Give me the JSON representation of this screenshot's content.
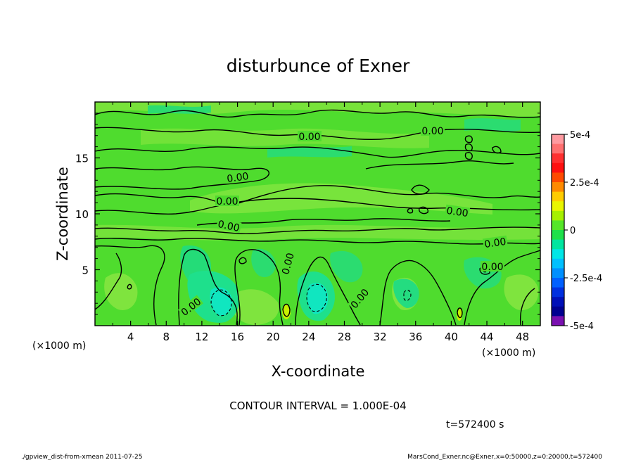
{
  "chart_data": {
    "type": "heatmap",
    "title": "disturbunce of Exner",
    "xlabel": "X-coordinate",
    "ylabel": "Z-coordinate",
    "x_units_left": "(×1000 m)",
    "x_units_right": "(×1000 m)",
    "xlim": [
      0,
      50
    ],
    "ylim": [
      0,
      20
    ],
    "x_ticks": [
      "4",
      "8",
      "12",
      "16",
      "20",
      "24",
      "28",
      "32",
      "36",
      "40",
      "44",
      "48"
    ],
    "y_ticks": [
      "5",
      "10",
      "15"
    ],
    "colorbar": {
      "labels": [
        "5e-4",
        "2.5e-4",
        "0",
        "-2.5e-4",
        "-5e-4"
      ],
      "range": [
        -0.0005,
        0.0005
      ],
      "colors": [
        "#ff9aa0",
        "#ff7070",
        "#ff3030",
        "#ff1010",
        "#ff4a00",
        "#ff8a00",
        "#ffcc00",
        "#e9f500",
        "#a6f000",
        "#55e628",
        "#1ee04a",
        "#00e6a0",
        "#00e6e6",
        "#00c0ff",
        "#0090ff",
        "#0060ff",
        "#0030e0",
        "#0010b8",
        "#000090",
        "#7a10b0"
      ]
    },
    "contour_labels": [
      "0.00",
      "0.00",
      "0.00",
      "0.00",
      "0.00",
      "0.00",
      "0.00",
      "0.00",
      "0.00",
      "0.00",
      "0.00"
    ]
  },
  "annotations": {
    "contour_interval": "CONTOUR INTERVAL = 1.000E-04",
    "time": "t=572400 s",
    "footer_left": "./gpview_dist-from-xmean  2011-07-25",
    "footer_right": "MarsCond_Exner.nc@Exner,x=0:50000,z=0:20000,t=572400"
  }
}
